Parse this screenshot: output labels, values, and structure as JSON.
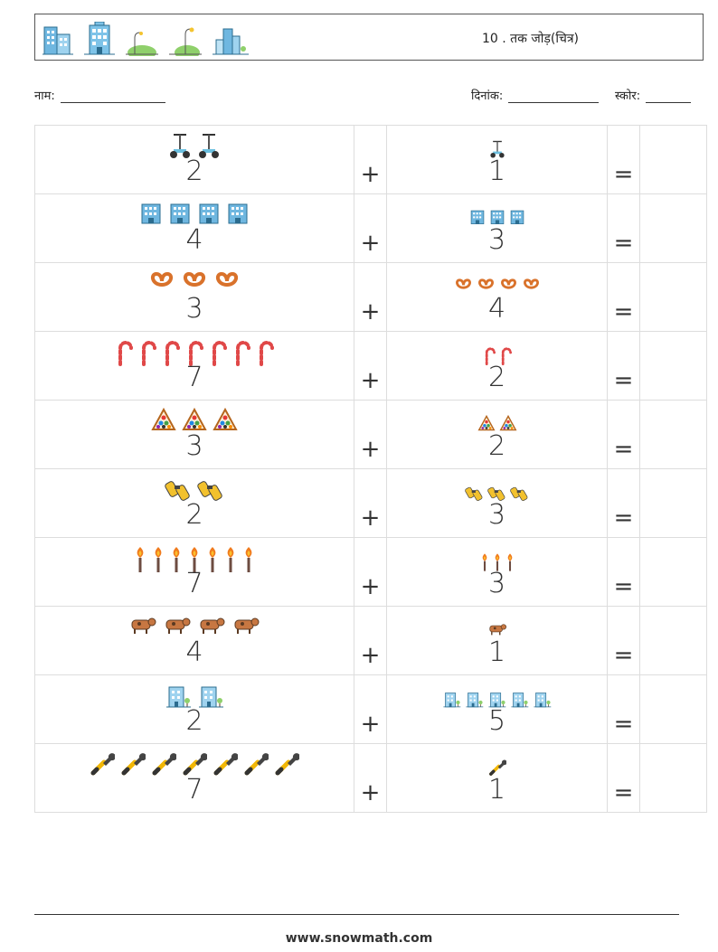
{
  "header": {
    "title": "10 . तक जोड़(चित्र)",
    "icons": [
      "building-icon",
      "building-icon",
      "park-lamp-icon",
      "park-lamp-icon",
      "city-icon"
    ]
  },
  "meta": {
    "name_label": "नाम:",
    "date_label": "दिनांक:",
    "score_label": "स्कोर:"
  },
  "operators": {
    "plus": "+",
    "equals": "="
  },
  "rows": [
    {
      "left": {
        "num": "2",
        "icon": "segway-icon",
        "count": 2
      },
      "right": {
        "num": "1",
        "icon": "segway-icon",
        "count": 1
      }
    },
    {
      "left": {
        "num": "4",
        "icon": "office-building-icon",
        "count": 4
      },
      "right": {
        "num": "3",
        "icon": "office-building-icon",
        "count": 3
      }
    },
    {
      "left": {
        "num": "3",
        "icon": "pretzel-icon",
        "count": 3
      },
      "right": {
        "num": "4",
        "icon": "pretzel-icon",
        "count": 4
      }
    },
    {
      "left": {
        "num": "7",
        "icon": "candy-cane-icon",
        "count": 7
      },
      "right": {
        "num": "2",
        "icon": "candy-cane-icon",
        "count": 2
      }
    },
    {
      "left": {
        "num": "3",
        "icon": "billiard-rack-icon",
        "count": 3
      },
      "right": {
        "num": "2",
        "icon": "billiard-rack-icon",
        "count": 2
      }
    },
    {
      "left": {
        "num": "2",
        "icon": "binoculars-icon",
        "count": 2
      },
      "right": {
        "num": "3",
        "icon": "binoculars-icon",
        "count": 3
      }
    },
    {
      "left": {
        "num": "7",
        "icon": "torch-icon",
        "count": 7
      },
      "right": {
        "num": "3",
        "icon": "torch-icon",
        "count": 3
      }
    },
    {
      "left": {
        "num": "4",
        "icon": "cow-icon",
        "count": 4
      },
      "right": {
        "num": "1",
        "icon": "cow-icon",
        "count": 1
      }
    },
    {
      "left": {
        "num": "2",
        "icon": "hospital-building-icon",
        "count": 2
      },
      "right": {
        "num": "5",
        "icon": "hospital-building-icon",
        "count": 5
      }
    },
    {
      "left": {
        "num": "7",
        "icon": "wrench-icon",
        "count": 7
      },
      "right": {
        "num": "1",
        "icon": "wrench-icon",
        "count": 1
      }
    }
  ],
  "footer": {
    "url": "www.snowmath.com"
  }
}
